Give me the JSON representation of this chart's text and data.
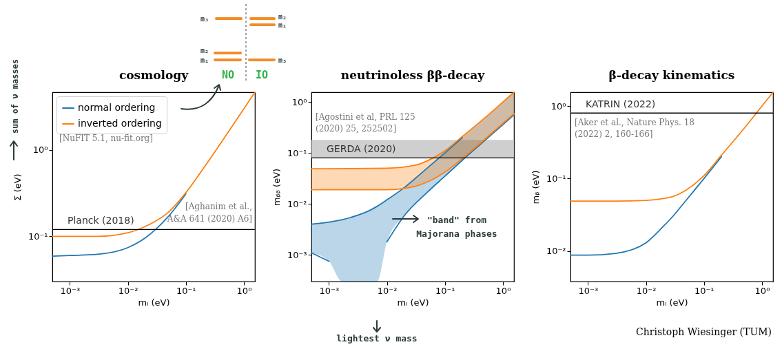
{
  "chart_data": [
    {
      "type": "line",
      "title": "cosmology",
      "xlabel": "mₗ (eV)",
      "ylabel": "Σ (eV)",
      "log": "xy",
      "legend": "top left",
      "xlim": [
        0.0005,
        1.55
      ],
      "ylim": [
        0.03,
        4.65
      ],
      "xticks": [
        {
          "value": 0.001,
          "label": "10⁻³"
        },
        {
          "value": 0.01,
          "label": "10⁻²"
        },
        {
          "value": 0.1,
          "label": "10⁻¹"
        },
        {
          "value": 1,
          "label": "10⁰"
        }
      ],
      "yticks": [
        {
          "value": 0.1,
          "label": "10⁻¹"
        },
        {
          "value": 1,
          "label": "10⁰"
        }
      ],
      "series": [
        {
          "name": "normal ordering",
          "color": "#1f77b4",
          "x": [
            0.0005,
            0.001,
            0.003,
            0.01,
            0.02,
            0.03,
            0.05,
            0.1
          ],
          "values": [
            0.059,
            0.06,
            0.062,
            0.074,
            0.096,
            0.12,
            0.17,
            0.31
          ]
        },
        {
          "name": "inverted ordering",
          "color": "#ff7f0e",
          "x": [
            0.0005,
            0.001,
            0.003,
            0.01,
            0.02,
            0.03,
            0.05,
            0.1,
            0.2,
            0.5,
            1,
            1.55
          ],
          "values": [
            0.1,
            0.1,
            0.1,
            0.11,
            0.13,
            0.15,
            0.19,
            0.32,
            0.61,
            1.5,
            3.0,
            4.65
          ]
        }
      ],
      "ref_lines": [
        {
          "axis": "y",
          "value": 0.12,
          "label": "Planck (2018)",
          "color": "#000000"
        }
      ],
      "annotations": [
        "[NuFIT 5.1, nu-fit.org]",
        "[Aghanim et al., A&A 641 (2020) A6]",
        "sum of ν masses",
        "m₃",
        "m₂",
        "m₁",
        "NO",
        "IO",
        "m₂",
        "m₁",
        "m₃"
      ]
    },
    {
      "type": "line",
      "title": "neutrinoless  ββ-decay",
      "xlabel": "mₗ (eV)",
      "ylabel": "mᵦᵦ (eV)",
      "log": "xy",
      "xlim": [
        0.0005,
        1.55
      ],
      "ylim": [
        0.0003,
        1.55
      ],
      "xticks": [
        {
          "value": 0.001,
          "label": "10⁻³"
        },
        {
          "value": 0.01,
          "label": "10⁻²"
        },
        {
          "value": 0.1,
          "label": "10⁻¹"
        },
        {
          "value": 1,
          "label": "10⁰"
        }
      ],
      "yticks": [
        {
          "value": 0.001,
          "label": "10⁻³"
        },
        {
          "value": 0.01,
          "label": "10⁻²"
        },
        {
          "value": 0.1,
          "label": "10⁻¹"
        },
        {
          "value": 1,
          "label": "10⁰"
        }
      ],
      "series": [
        {
          "color": "#1f77b4",
          "x": [
            0.0005,
            0.001,
            0.0017,
            0.003,
            0.005,
            0.0068,
            0.01,
            0.02,
            0.05,
            0.1,
            0.2,
            0.5,
            1,
            1.55
          ],
          "values": [
            0.004,
            0.0044,
            0.0049,
            0.0059,
            0.0074,
            0.009,
            0.012,
            0.021,
            0.051,
            0.1,
            0.2,
            null,
            null,
            null
          ],
          "upper": [
            0.004,
            0.0044,
            0.0049,
            0.0059,
            0.0074,
            0.009,
            0.012,
            0.021,
            0.051,
            0.1,
            0.2,
            0.5,
            1.0,
            1.55
          ],
          "lower": [
            0.0011,
            0.00075,
            0.0003,
            0.0003,
            0.0003,
            0.0003,
            0.0018,
            0.0059,
            0.017,
            0.035,
            0.072,
            0.18,
            0.36,
            0.56
          ]
        },
        {
          "color": "#ff7f0e",
          "x": [
            0.0005,
            0.001,
            0.01,
            0.03,
            0.05,
            0.1,
            0.2,
            0.5,
            1,
            1.55
          ],
          "values": [
            0.049,
            0.049,
            0.05,
            0.057,
            0.07,
            0.11,
            0.21,
            0.5,
            1.0,
            1.55
          ],
          "upper": [
            0.049,
            0.049,
            0.05,
            0.057,
            0.07,
            0.11,
            0.21,
            0.5,
            1.0,
            1.55
          ],
          "lower": [
            0.019,
            0.019,
            0.019,
            0.022,
            0.027,
            0.042,
            0.078,
            0.19,
            0.38,
            0.59
          ]
        },
        {
          "color": "#1f77b4",
          "x": [
            0.0005,
            0.001,
            0.0017,
            0.003,
            0.005,
            0.0068,
            0.01,
            0.02,
            0.05,
            0.1,
            0.2,
            0.5,
            1,
            1.55
          ],
          "values": [
            0.0011,
            0.00075,
            null,
            null,
            null,
            null,
            0.0018,
            0.0059,
            0.017,
            0.035,
            0.072,
            0.18,
            0.36,
            0.56
          ]
        },
        {
          "color": "#ff7f0e",
          "x": [
            0.0005,
            0.001,
            0.01,
            0.03,
            0.05,
            0.1,
            0.2,
            0.5,
            1,
            1.55
          ],
          "values": [
            0.019,
            0.019,
            0.019,
            0.022,
            0.027,
            0.042,
            0.078,
            0.19,
            0.38,
            0.59
          ]
        }
      ],
      "bands": [
        {
          "axis": "y",
          "from": 0.08,
          "to": 0.18,
          "color": "#bfbfbf"
        }
      ],
      "ref_lines": [
        {
          "axis": "y",
          "value": 0.08,
          "label": "GERDA (2020)",
          "color": "#000000"
        }
      ],
      "annotations": [
        "[Agostini et al, PRL 125 (2020) 25, 252502]",
        "\"band\" from Majorana phases",
        "lightest ν mass"
      ]
    },
    {
      "type": "line",
      "title": "β-decay kinematics",
      "xlabel": "mₗ (eV)",
      "ylabel": "mᵦ (eV)",
      "log": "xy",
      "xlim": [
        0.0005,
        1.55
      ],
      "ylim": [
        0.0038,
        1.55
      ],
      "xticks": [
        {
          "value": 0.001,
          "label": "10⁻³"
        },
        {
          "value": 0.01,
          "label": "10⁻²"
        },
        {
          "value": 0.1,
          "label": "10⁻¹"
        },
        {
          "value": 1,
          "label": "10⁰"
        }
      ],
      "yticks": [
        {
          "value": 0.01,
          "label": "10⁻²"
        },
        {
          "value": 0.1,
          "label": "10⁻¹"
        },
        {
          "value": 1,
          "label": "10⁰"
        }
      ],
      "series": [
        {
          "color": "#1f77b4",
          "x": [
            0.0005,
            0.001,
            0.003,
            0.01,
            0.02,
            0.03,
            0.05,
            0.1,
            0.2
          ],
          "values": [
            0.0088,
            0.0088,
            0.0093,
            0.013,
            0.022,
            0.031,
            0.051,
            0.1,
            0.2
          ]
        },
        {
          "color": "#ff7f0e",
          "x": [
            0.0005,
            0.001,
            0.003,
            0.01,
            0.02,
            0.03,
            0.05,
            0.1,
            0.2,
            0.5,
            1,
            1.55
          ],
          "values": [
            0.049,
            0.049,
            0.049,
            0.05,
            0.053,
            0.057,
            0.07,
            0.11,
            0.21,
            0.5,
            1.0,
            1.55
          ]
        }
      ],
      "ref_lines": [
        {
          "axis": "y",
          "value": 0.8,
          "label": "KATRIN (2022)",
          "color": "#000000"
        }
      ],
      "annotations": [
        "[Aker et al., Nature Phys. 18 (2022) 2, 160-166]",
        "Christoph Wiesinger (TUM)"
      ]
    }
  ]
}
